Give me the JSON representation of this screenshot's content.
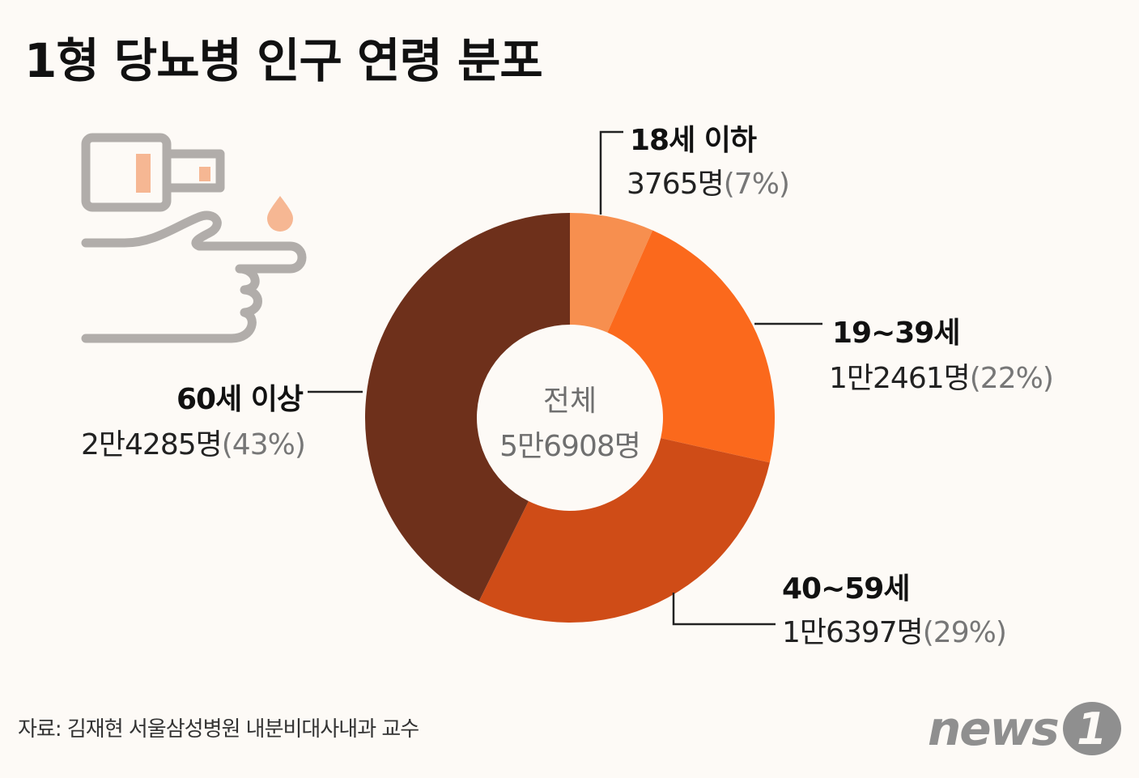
{
  "title": "1형 당뇨병 인구 연령 분포",
  "center": {
    "title": "전체",
    "total": "5만6908명"
  },
  "source": "자료: 김재현 서울삼성병원 내분비대사내과 교수",
  "logo": {
    "text": "news",
    "mark": "1"
  },
  "labels": [
    {
      "name": "18세 이하",
      "count": "3765명",
      "pct": "(7%)"
    },
    {
      "name": "19~39세",
      "count": "1만2461명",
      "pct": "(22%)"
    },
    {
      "name": "40~59세",
      "count": "1만6397명",
      "pct": "(29%)"
    },
    {
      "name": "60세 이상",
      "count": "2만4285명",
      "pct": "(43%)"
    }
  ],
  "chart_data": {
    "type": "pie",
    "categories": [
      "18세 이하",
      "19~39세",
      "40~59세",
      "60세 이상"
    ],
    "values": [
      3765,
      12461,
      16397,
      24285
    ],
    "percentages": [
      7,
      22,
      29,
      43
    ],
    "total": 56908,
    "colors": [
      "#f78f4f",
      "#fb691c",
      "#cf4c17",
      "#6e301b"
    ]
  },
  "illustration": {
    "icon": "glucose-meter-finger-icon"
  }
}
